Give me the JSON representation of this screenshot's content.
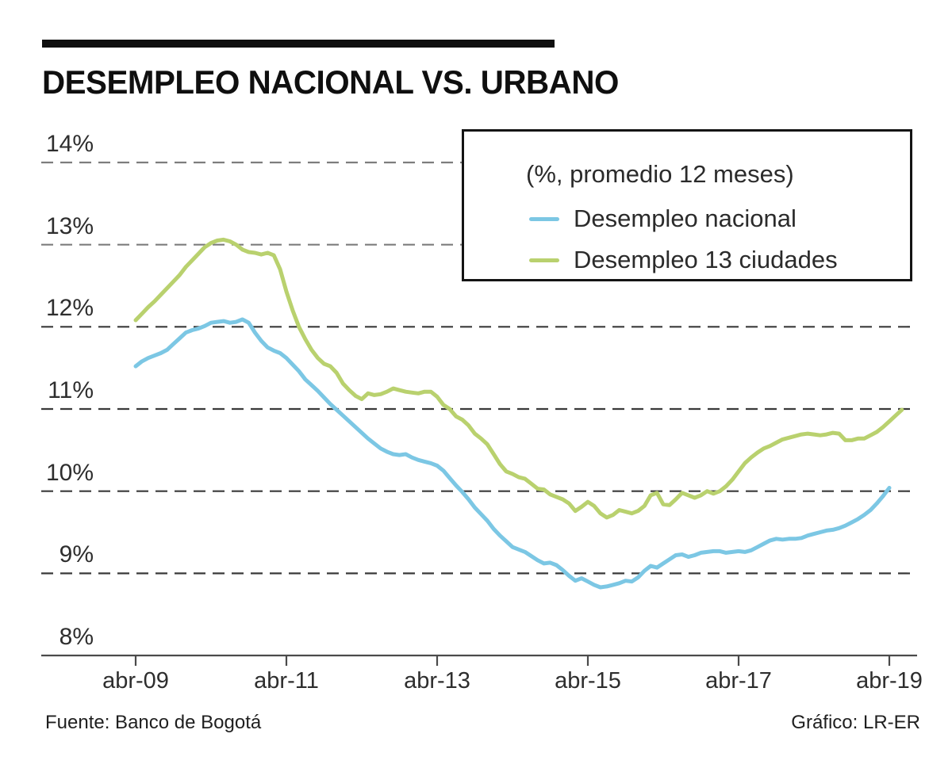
{
  "header": {
    "title": "DESEMPLEO NACIONAL VS. URBANO"
  },
  "legend": {
    "title": "(%, promedio 12 meses)",
    "items": [
      {
        "label": "Desempleo nacional",
        "color": "#7cc7e4"
      },
      {
        "label": "Desempleo 13 ciudades",
        "color": "#b9d16e"
      }
    ]
  },
  "footer": {
    "source": "Fuente: Banco de Bogotá",
    "credit": "Gráfico: LR-ER"
  },
  "colors": {
    "nacional": "#7cc7e4",
    "ciudades": "#b9d16e",
    "grid_upper": "#7d7d7d",
    "grid_lower": "#3a3a3a",
    "axis": "#4a4a4a",
    "label_text": "#2e2e2e"
  },
  "chart_data": {
    "type": "line",
    "title": "DESEMPLEO NACIONAL VS. URBANO",
    "subtitle": "(%, promedio 12 meses)",
    "xlabel": "",
    "ylabel": "%",
    "ylim": [
      8,
      14
    ],
    "grid": "horizontal dashed, one line per 1%",
    "legend_position": "top-right box",
    "x_start": "abr-09",
    "x_step": "1 month",
    "x_tick_labels": [
      "abr-09",
      "abr-11",
      "abr-13",
      "abr-15",
      "abr-17",
      "abr-19"
    ],
    "x_tick_month_index": [
      0,
      24,
      48,
      72,
      96,
      120
    ],
    "y_tick_labels": [
      "14%",
      "13%",
      "12%",
      "11%",
      "10%",
      "9%",
      "8%"
    ],
    "y_tick_values": [
      14,
      13,
      12,
      11,
      10,
      9,
      8
    ],
    "series": [
      {
        "name": "Desempleo nacional",
        "color": "#7cc7e4",
        "values": [
          11.52,
          11.58,
          11.62,
          11.65,
          11.68,
          11.72,
          11.79,
          11.86,
          11.93,
          11.96,
          11.98,
          12.01,
          12.05,
          12.06,
          12.07,
          12.05,
          12.06,
          12.09,
          12.05,
          11.93,
          11.83,
          11.75,
          11.71,
          11.68,
          11.62,
          11.54,
          11.46,
          11.36,
          11.29,
          11.22,
          11.14,
          11.06,
          10.99,
          10.92,
          10.85,
          10.78,
          10.71,
          10.64,
          10.58,
          10.52,
          10.48,
          10.45,
          10.44,
          10.45,
          10.41,
          10.38,
          10.36,
          10.34,
          10.31,
          10.25,
          10.16,
          10.07,
          9.99,
          9.9,
          9.8,
          9.72,
          9.64,
          9.54,
          9.46,
          9.39,
          9.32,
          9.29,
          9.26,
          9.21,
          9.16,
          9.12,
          9.13,
          9.1,
          9.04,
          8.97,
          8.91,
          8.94,
          8.9,
          8.86,
          8.83,
          8.84,
          8.86,
          8.88,
          8.91,
          8.9,
          8.95,
          9.03,
          9.09,
          9.07,
          9.12,
          9.17,
          9.22,
          9.23,
          9.2,
          9.22,
          9.25,
          9.26,
          9.27,
          9.27,
          9.25,
          9.26,
          9.27,
          9.26,
          9.28,
          9.32,
          9.36,
          9.4,
          9.42,
          9.41,
          9.42,
          9.42,
          9.43,
          9.46,
          9.48,
          9.5,
          9.52,
          9.53,
          9.55,
          9.58,
          9.62,
          9.66,
          9.71,
          9.77,
          9.85,
          9.94,
          10.04
        ]
      },
      {
        "name": "Desempleo 13 ciudades",
        "color": "#b9d16e",
        "values": [
          12.08,
          12.16,
          12.24,
          12.31,
          12.39,
          12.47,
          12.55,
          12.63,
          12.73,
          12.81,
          12.89,
          12.97,
          13.02,
          13.05,
          13.06,
          13.04,
          13.0,
          12.94,
          12.91,
          12.9,
          12.88,
          12.9,
          12.87,
          12.7,
          12.43,
          12.2,
          12.0,
          11.85,
          11.72,
          11.62,
          11.55,
          11.52,
          11.44,
          11.31,
          11.23,
          11.16,
          11.12,
          11.19,
          11.17,
          11.18,
          11.21,
          11.25,
          11.23,
          11.21,
          11.2,
          11.19,
          11.21,
          11.21,
          11.15,
          11.05,
          11.0,
          10.91,
          10.87,
          10.8,
          10.7,
          10.64,
          10.57,
          10.45,
          10.33,
          10.24,
          10.21,
          10.17,
          10.15,
          10.09,
          10.03,
          10.02,
          9.96,
          9.93,
          9.9,
          9.85,
          9.76,
          9.81,
          9.87,
          9.82,
          9.73,
          9.68,
          9.71,
          9.77,
          9.75,
          9.73,
          9.76,
          9.82,
          9.95,
          9.98,
          9.84,
          9.83,
          9.9,
          9.98,
          9.95,
          9.92,
          9.95,
          10.0,
          9.97,
          10.0,
          10.06,
          10.14,
          10.24,
          10.34,
          10.41,
          10.47,
          10.52,
          10.55,
          10.59,
          10.63,
          10.65,
          10.67,
          10.69,
          10.7,
          10.69,
          10.68,
          10.69,
          10.71,
          10.7,
          10.62,
          10.62,
          10.64,
          10.64,
          10.68,
          10.72,
          10.78,
          10.85,
          10.92,
          10.99
        ]
      }
    ]
  }
}
